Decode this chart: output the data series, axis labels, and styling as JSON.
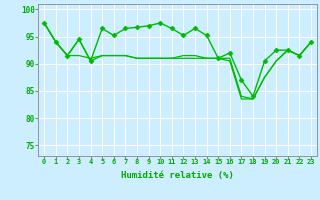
{
  "xlabel": "Humidité relative (%)",
  "background_color": "#cceeff",
  "grid_color": "#ffffff",
  "line_color": "#00bb00",
  "marker_color": "#00bb00",
  "xlim": [
    -0.5,
    23.5
  ],
  "ylim": [
    73,
    101
  ],
  "yticks": [
    75,
    80,
    85,
    90,
    95,
    100
  ],
  "xticks": [
    0,
    1,
    2,
    3,
    4,
    5,
    6,
    7,
    8,
    9,
    10,
    11,
    12,
    13,
    14,
    15,
    16,
    17,
    18,
    19,
    20,
    21,
    22,
    23
  ],
  "series": [
    [
      97.5,
      94.0,
      91.5,
      94.5,
      90.5,
      96.5,
      95.2,
      96.5,
      96.7,
      97.0,
      97.5,
      96.5,
      95.2,
      96.5,
      95.2,
      91.0,
      92.0,
      87.0,
      84.0,
      90.5,
      92.5,
      92.5,
      91.5,
      94.0
    ],
    [
      97.5,
      94.0,
      91.5,
      94.5,
      90.5,
      91.5,
      91.5,
      91.5,
      91.0,
      91.0,
      91.0,
      91.0,
      91.5,
      91.5,
      91.0,
      91.0,
      91.0,
      84.0,
      83.5,
      87.5,
      90.5,
      92.5,
      91.5,
      94.0
    ],
    [
      97.5,
      94.0,
      91.5,
      91.5,
      91.0,
      91.5,
      91.5,
      91.5,
      91.0,
      91.0,
      91.0,
      91.0,
      91.0,
      91.0,
      91.0,
      91.0,
      90.5,
      83.5,
      83.5,
      87.5,
      90.5,
      92.5,
      91.5,
      94.0
    ]
  ],
  "xlabel_fontsize": 6.5,
  "tick_fontsize": 5.0
}
